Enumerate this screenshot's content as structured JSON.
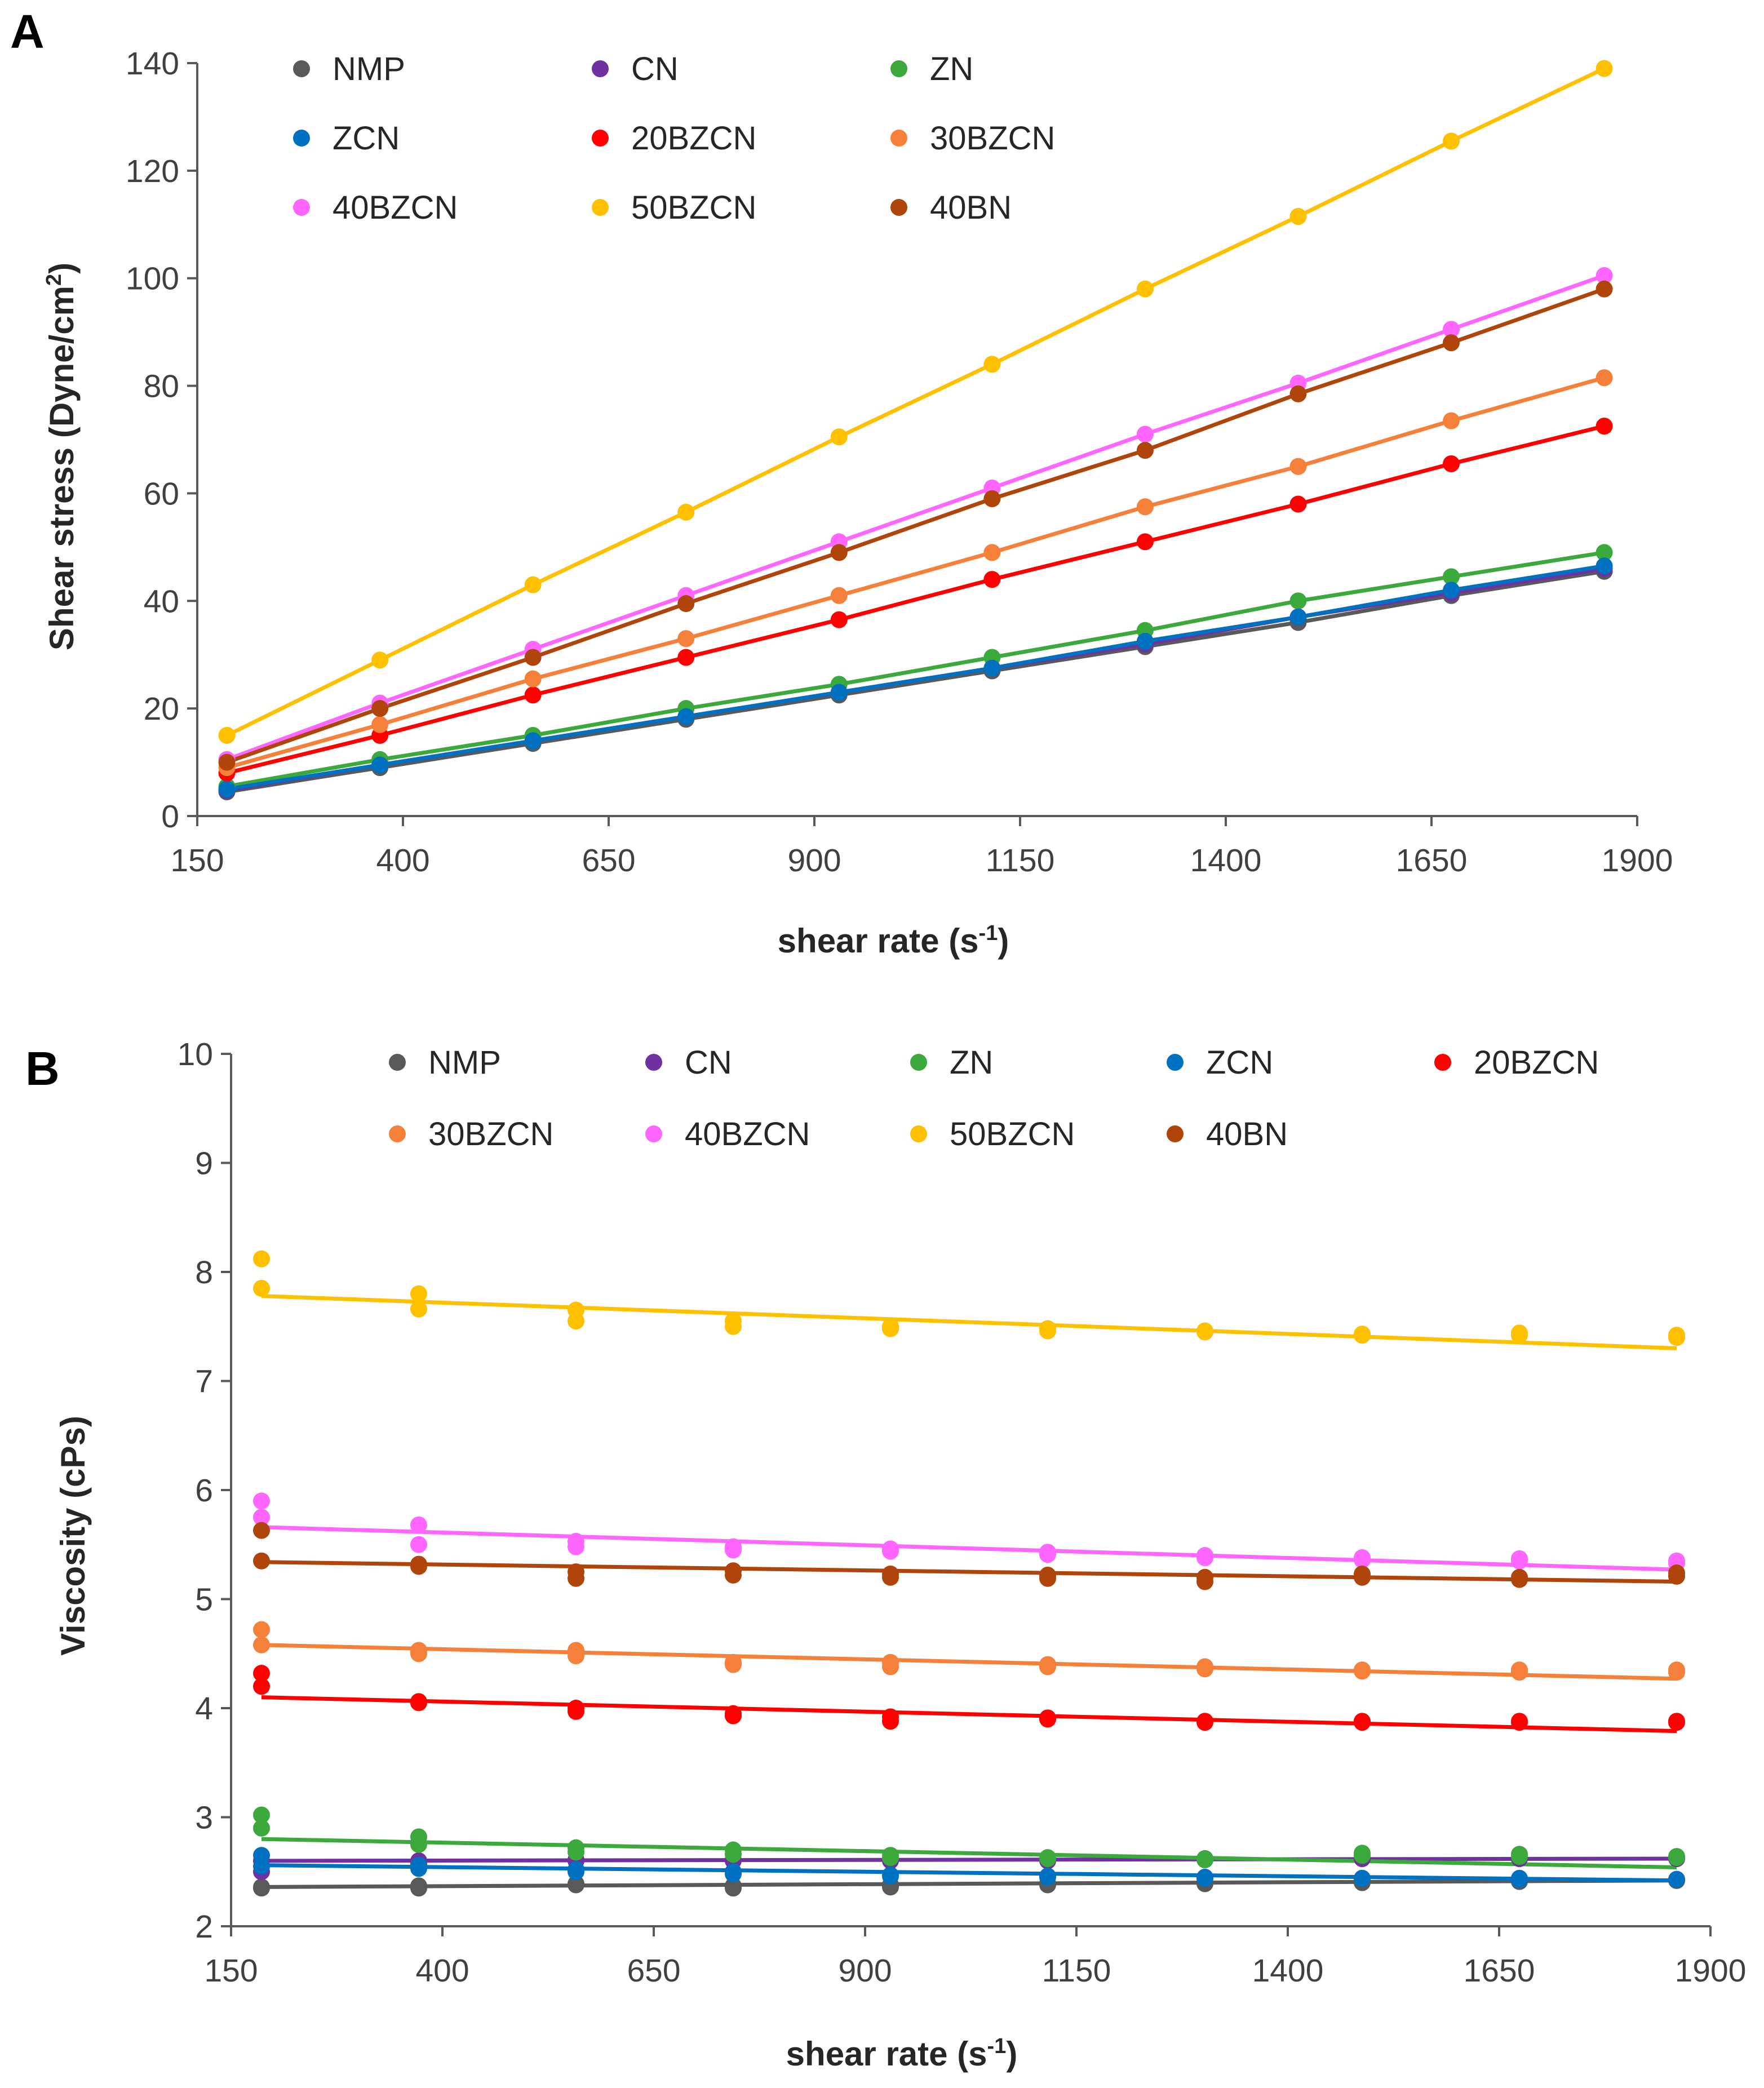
{
  "series_colors": {
    "NMP": "#595959",
    "CN": "#7030A0",
    "ZN": "#3CA93C",
    "ZCN": "#0070C0",
    "20BZCN": "#FF0000",
    "30BZCN": "#F5803A",
    "40BZCN": "#FF66FF",
    "50BZCN": "#FFC000",
    "40BN": "#B0450B"
  },
  "chart_data": [
    {
      "panel": "A",
      "type": "line",
      "title": "",
      "xlabel": "shear rate (s",
      "xlabel_sup": "-1",
      "xlabel_end": ")",
      "ylabel": "Shear stress (Dyne/cm",
      "ylabel_sup": "2",
      "ylabel_end": ")",
      "xlim": [
        150,
        1900
      ],
      "ylim": [
        0,
        140
      ],
      "xticks": [
        150,
        400,
        650,
        900,
        1150,
        1400,
        1650,
        1900
      ],
      "yticks": [
        0,
        20,
        40,
        60,
        80,
        100,
        120,
        140
      ],
      "legend_position": "top-left",
      "x": [
        186,
        372,
        558,
        744,
        930,
        1116,
        1302,
        1488,
        1674,
        1860
      ],
      "series": [
        {
          "name": "NMP",
          "values": [
            4.5,
            9,
            13.5,
            18,
            22.5,
            27,
            31.5,
            36,
            41,
            45.5
          ]
        },
        {
          "name": "CN",
          "values": [
            4.8,
            9.5,
            14,
            18.5,
            23,
            27.5,
            32,
            37,
            41.5,
            46
          ]
        },
        {
          "name": "ZN",
          "values": [
            5.5,
            10.5,
            15,
            20,
            24.5,
            29.5,
            34.5,
            40,
            44.5,
            49
          ]
        },
        {
          "name": "ZCN",
          "values": [
            5,
            9.5,
            14,
            18.5,
            23,
            27.5,
            32.5,
            37,
            42,
            46.5
          ]
        },
        {
          "name": "20BZCN",
          "values": [
            8,
            15,
            22.5,
            29.5,
            36.5,
            44,
            51,
            58,
            65.5,
            72.5
          ]
        },
        {
          "name": "30BZCN",
          "values": [
            9,
            17,
            25.5,
            33,
            41,
            49,
            57.5,
            65,
            73.5,
            81.5
          ]
        },
        {
          "name": "40BZCN",
          "values": [
            10.5,
            21,
            31,
            41,
            51,
            61,
            71,
            80.5,
            90.5,
            100.5
          ]
        },
        {
          "name": "50BZCN",
          "values": [
            15,
            29,
            43,
            56.5,
            70.5,
            84,
            98,
            111.5,
            125.5,
            139
          ]
        },
        {
          "name": "40BN",
          "values": [
            10,
            20,
            29.5,
            39.5,
            49,
            59,
            68,
            78.5,
            88,
            98
          ]
        }
      ]
    },
    {
      "panel": "B",
      "type": "scatter",
      "title": "",
      "xlabel": "shear rate (s",
      "xlabel_sup": "-1",
      "xlabel_end": ")",
      "ylabel": "Viscosity (cPs)",
      "xlim": [
        150,
        1900
      ],
      "ylim": [
        2,
        10
      ],
      "xticks": [
        150,
        400,
        650,
        900,
        1150,
        1400,
        1650,
        1900
      ],
      "yticks": [
        2,
        3,
        4,
        5,
        6,
        7,
        8,
        9,
        10
      ],
      "legend_position": "top",
      "x": [
        186,
        186,
        372,
        372,
        558,
        558,
        744,
        744,
        930,
        930,
        1116,
        1116,
        1302,
        1302,
        1488,
        1488,
        1674,
        1674,
        1860,
        1860
      ],
      "series": [
        {
          "name": "NMP",
          "values": [
            2.35,
            2.36,
            2.35,
            2.37,
            2.38,
            2.39,
            2.35,
            2.37,
            2.36,
            2.38,
            2.38,
            2.39,
            2.39,
            2.4,
            2.4,
            2.41,
            2.41,
            2.42,
            2.42,
            2.42
          ],
          "fit": [
            2.36,
            2.42
          ]
        },
        {
          "name": "CN",
          "values": [
            2.5,
            2.6,
            2.58,
            2.6,
            2.6,
            2.61,
            2.6,
            2.61,
            2.6,
            2.61,
            2.6,
            2.61,
            2.61,
            2.62,
            2.62,
            2.62,
            2.62,
            2.62,
            2.62,
            2.62
          ],
          "fit": [
            2.6,
            2.62
          ]
        },
        {
          "name": "ZN",
          "values": [
            3.02,
            2.9,
            2.82,
            2.75,
            2.72,
            2.68,
            2.7,
            2.66,
            2.65,
            2.63,
            2.63,
            2.62,
            2.62,
            2.61,
            2.67,
            2.65,
            2.66,
            2.64,
            2.64,
            2.63
          ],
          "fit": [
            2.8,
            2.54
          ]
        },
        {
          "name": "ZCN",
          "values": [
            2.65,
            2.55,
            2.56,
            2.53,
            2.52,
            2.5,
            2.5,
            2.48,
            2.47,
            2.46,
            2.46,
            2.45,
            2.45,
            2.44,
            2.44,
            2.44,
            2.44,
            2.43,
            2.43,
            2.43
          ],
          "fit": [
            2.56,
            2.42
          ]
        },
        {
          "name": "20BZCN",
          "values": [
            4.32,
            4.2,
            4.06,
            4.05,
            4.0,
            3.97,
            3.95,
            3.93,
            3.92,
            3.88,
            3.91,
            3.9,
            3.88,
            3.87,
            3.88,
            3.87,
            3.88,
            3.87,
            3.88,
            3.87
          ],
          "fit": [
            4.1,
            3.79
          ]
        },
        {
          "name": "30BZCN",
          "values": [
            4.72,
            4.58,
            4.53,
            4.5,
            4.53,
            4.48,
            4.42,
            4.4,
            4.42,
            4.38,
            4.4,
            4.38,
            4.38,
            4.36,
            4.35,
            4.34,
            4.35,
            4.33,
            4.35,
            4.33
          ],
          "fit": [
            4.58,
            4.27
          ]
        },
        {
          "name": "40BZCN",
          "values": [
            5.9,
            5.75,
            5.68,
            5.5,
            5.53,
            5.48,
            5.48,
            5.45,
            5.46,
            5.44,
            5.43,
            5.41,
            5.4,
            5.38,
            5.38,
            5.36,
            5.37,
            5.35,
            5.35,
            5.33
          ],
          "fit": [
            5.66,
            5.27
          ]
        },
        {
          "name": "50BZCN",
          "values": [
            8.12,
            7.85,
            7.8,
            7.66,
            7.65,
            7.55,
            7.55,
            7.5,
            7.5,
            7.48,
            7.48,
            7.46,
            7.46,
            7.45,
            7.43,
            7.42,
            7.44,
            7.42,
            7.42,
            7.4
          ],
          "fit": [
            7.78,
            7.3
          ]
        },
        {
          "name": "40BN",
          "values": [
            5.63,
            5.35,
            5.32,
            5.3,
            5.25,
            5.19,
            5.26,
            5.22,
            5.23,
            5.2,
            5.22,
            5.19,
            5.2,
            5.16,
            5.23,
            5.2,
            5.2,
            5.18,
            5.24,
            5.21
          ],
          "fit": [
            5.34,
            5.16
          ]
        }
      ]
    }
  ]
}
